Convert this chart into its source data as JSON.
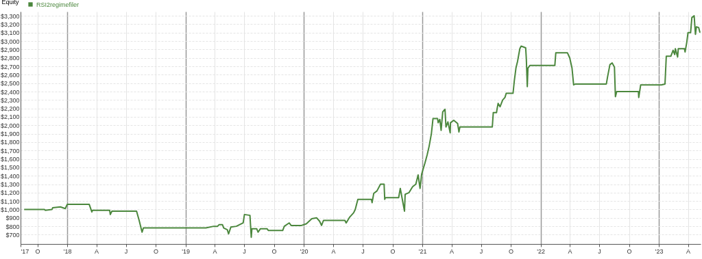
{
  "chart_data": {
    "type": "line",
    "ylabel": "Equity",
    "legend": "top left",
    "grid": true,
    "marker": "none",
    "line_style": "solid",
    "xlim": [
      "2017-08-10",
      "2023-05-10"
    ],
    "ylim": [
      590,
      3350
    ],
    "xticks": [
      {
        "value": "2017-08-10",
        "label": "'17"
      },
      {
        "value": "2017-10-01",
        "label": "O"
      },
      {
        "value": "2018-01-01",
        "label": "'18"
      },
      {
        "value": "2018-04-01",
        "label": "A"
      },
      {
        "value": "2018-07-01",
        "label": "J"
      },
      {
        "value": "2018-10-01",
        "label": "O"
      },
      {
        "value": "2019-01-01",
        "label": "'19"
      },
      {
        "value": "2019-04-01",
        "label": "A"
      },
      {
        "value": "2019-07-01",
        "label": "J"
      },
      {
        "value": "2019-10-01",
        "label": "O"
      },
      {
        "value": "2020-01-01",
        "label": "'20"
      },
      {
        "value": "2020-04-01",
        "label": "A"
      },
      {
        "value": "2020-07-01",
        "label": "J"
      },
      {
        "value": "2020-10-01",
        "label": "O"
      },
      {
        "value": "2021-01-01",
        "label": "'21"
      },
      {
        "value": "2021-04-01",
        "label": "A"
      },
      {
        "value": "2021-07-01",
        "label": "J"
      },
      {
        "value": "2021-10-01",
        "label": "O"
      },
      {
        "value": "2022-01-01",
        "label": "'22"
      },
      {
        "value": "2022-04-01",
        "label": "A"
      },
      {
        "value": "2022-07-01",
        "label": "J"
      },
      {
        "value": "2022-10-01",
        "label": "O"
      },
      {
        "value": "2023-01-01",
        "label": "'23"
      },
      {
        "value": "2023-04-01",
        "label": "A"
      }
    ],
    "yticks": [
      {
        "value": 700,
        "label": "$700"
      },
      {
        "value": 800,
        "label": "$800"
      },
      {
        "value": 900,
        "label": "$900"
      },
      {
        "value": 1000,
        "label": "$1,000"
      },
      {
        "value": 1100,
        "label": "$1,100"
      },
      {
        "value": 1200,
        "label": "$1,200"
      },
      {
        "value": 1300,
        "label": "$1,300"
      },
      {
        "value": 1400,
        "label": "$1,400"
      },
      {
        "value": 1500,
        "label": "$1,500"
      },
      {
        "value": 1600,
        "label": "$1,600"
      },
      {
        "value": 1700,
        "label": "$1,700"
      },
      {
        "value": 1800,
        "label": "$1,800"
      },
      {
        "value": 1900,
        "label": "$1,900"
      },
      {
        "value": 2000,
        "label": "$2,000"
      },
      {
        "value": 2100,
        "label": "$2,100"
      },
      {
        "value": 2200,
        "label": "$2,200"
      },
      {
        "value": 2300,
        "label": "$2,300"
      },
      {
        "value": 2400,
        "label": "$2,400"
      },
      {
        "value": 2500,
        "label": "$2,500"
      },
      {
        "value": 2600,
        "label": "$2,600"
      },
      {
        "value": 2700,
        "label": "$2,700"
      },
      {
        "value": 2800,
        "label": "$2,800"
      },
      {
        "value": 2900,
        "label": "$2,900"
      },
      {
        "value": 3000,
        "label": "$3,000"
      },
      {
        "value": 3100,
        "label": "$3,100"
      },
      {
        "value": 3200,
        "label": "$3,200"
      },
      {
        "value": 3300,
        "label": "$3,300"
      }
    ],
    "x": [
      "2017-08-21",
      "2017-10-23",
      "2017-10-25",
      "2017-11-15",
      "2017-11-17",
      "2017-12-11",
      "2017-12-26",
      "2018-01-01",
      "2018-03-10",
      "2018-03-18",
      "2018-03-20",
      "2018-05-12",
      "2018-05-14",
      "2018-05-19",
      "2018-08-03",
      "2018-08-11",
      "2018-08-20",
      "2018-08-24",
      "2018-11-23",
      "2019-03-05",
      "2019-03-29",
      "2019-04-10",
      "2019-04-15",
      "2019-04-25",
      "2019-04-29",
      "2019-05-10",
      "2019-05-14",
      "2019-05-21",
      "2019-06-07",
      "2019-06-28",
      "2019-07-02",
      "2019-07-19",
      "2019-07-23",
      "2019-07-25",
      "2019-08-09",
      "2019-08-13",
      "2019-08-20",
      "2019-09-10",
      "2019-09-14",
      "2019-10-28",
      "2019-11-02",
      "2019-11-17",
      "2019-11-23",
      "2019-12-25",
      "2020-01-09",
      "2020-01-26",
      "2020-02-10",
      "2020-02-19",
      "2020-02-25",
      "2020-03-02",
      "2020-05-07",
      "2020-05-11",
      "2020-05-22",
      "2020-06-03",
      "2020-06-08",
      "2020-06-16",
      "2020-07-28",
      "2020-07-30",
      "2020-08-04",
      "2020-08-14",
      "2020-08-25",
      "2020-09-05",
      "2020-09-07",
      "2020-09-09",
      "2020-10-20",
      "2020-10-25",
      "2020-11-07",
      "2020-11-09",
      "2020-11-21",
      "2020-12-02",
      "2020-12-12",
      "2020-12-19",
      "2020-12-25",
      "2020-12-30",
      "2021-01-09",
      "2021-01-16",
      "2021-01-22",
      "2021-01-29",
      "2021-02-03",
      "2021-02-17",
      "2021-02-19",
      "2021-02-24",
      "2021-02-28",
      "2021-03-05",
      "2021-03-12",
      "2021-03-15",
      "2021-03-21",
      "2021-03-28",
      "2021-03-29",
      "2021-04-08",
      "2021-04-20",
      "2021-04-24",
      "2021-04-27",
      "2021-08-05",
      "2021-08-08",
      "2021-08-18",
      "2021-08-20",
      "2021-08-23",
      "2021-08-29",
      "2021-09-06",
      "2021-09-13",
      "2021-09-17",
      "2021-10-08",
      "2021-10-12",
      "2021-10-17",
      "2021-10-22",
      "2021-10-29",
      "2021-11-02",
      "2021-11-16",
      "2021-11-18",
      "2021-11-21",
      "2021-11-23",
      "2021-11-29",
      "2022-02-14",
      "2022-02-17",
      "2022-03-25",
      "2022-04-01",
      "2022-04-08",
      "2022-04-13",
      "2022-04-19",
      "2022-07-23",
      "2022-07-27",
      "2022-08-03",
      "2022-08-10",
      "2022-08-17",
      "2022-08-20",
      "2022-08-24",
      "2022-10-30",
      "2022-10-31",
      "2022-11-06",
      "2023-01-09",
      "2023-01-20",
      "2023-01-24",
      "2023-02-07",
      "2023-02-14",
      "2023-02-19",
      "2023-02-21",
      "2023-02-28",
      "2023-03-02",
      "2023-03-21",
      "2023-03-23",
      "2023-03-28",
      "2023-04-01",
      "2023-04-09",
      "2023-04-13",
      "2023-04-20",
      "2023-04-24",
      "2023-04-27",
      "2023-05-04",
      "2023-05-08"
    ],
    "series": [
      {
        "name": "RSI2regimefiler",
        "color": "#4b873d",
        "values": [
          1000,
          1000,
          990,
          1000,
          1020,
          1030,
          1010,
          1060,
          1060,
          970,
          990,
          990,
          940,
          980,
          980,
          870,
          730,
          780,
          780,
          780,
          800,
          800,
          820,
          820,
          780,
          760,
          710,
          790,
          800,
          840,
          940,
          930,
          670,
          770,
          770,
          730,
          770,
          770,
          750,
          750,
          800,
          840,
          810,
          810,
          830,
          890,
          900,
          860,
          810,
          870,
          870,
          840,
          910,
          960,
          1000,
          1120,
          1120,
          1080,
          1190,
          1220,
          1300,
          1300,
          1120,
          1140,
          1140,
          1250,
          980,
          1180,
          1200,
          1270,
          1300,
          1410,
          1250,
          1420,
          1550,
          1650,
          1750,
          1900,
          2080,
          2080,
          2030,
          2070,
          1940,
          2160,
          2190,
          1980,
          2040,
          1910,
          2030,
          2060,
          2020,
          1920,
          1980,
          1980,
          2150,
          2150,
          2200,
          2260,
          2220,
          2300,
          2330,
          2380,
          2380,
          2530,
          2680,
          2760,
          2910,
          2940,
          2920,
          2790,
          2460,
          2680,
          2710,
          2710,
          2860,
          2860,
          2800,
          2680,
          2480,
          2490,
          2490,
          2580,
          2720,
          2740,
          2690,
          2340,
          2400,
          2400,
          2330,
          2480,
          2480,
          2490,
          2820,
          2820,
          2890,
          2840,
          2910,
          2810,
          2910,
          2910,
          2870,
          2980,
          3100,
          3100,
          3280,
          3300,
          3080,
          3170,
          3160,
          3100
        ]
      }
    ]
  }
}
